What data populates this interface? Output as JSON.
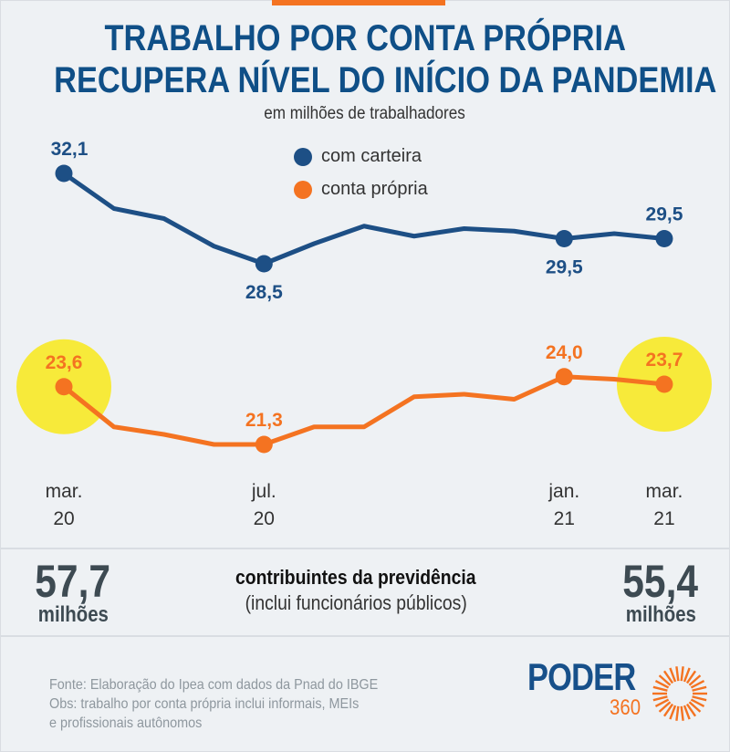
{
  "header": {
    "title_line1": "TRABALHO POR CONTA PRÓPRIA",
    "title_line2": "RECUPERA NÍVEL DO INÍCIO DA PANDEMIA",
    "subtitle": "em milhões de trabalhadores"
  },
  "colors": {
    "com_carteira": "#1d4f85",
    "conta_propria": "#f47321",
    "highlight": "#f7ea3a",
    "accent_bar": "#f47321"
  },
  "chart_data": {
    "type": "line",
    "title": "TRABALHO POR CONTA PRÓPRIA RECUPERA NÍVEL DO INÍCIO DA PANDEMIA",
    "subtitle": "em milhões de trabalhadores",
    "x_ticks": [
      {
        "index": 0,
        "line1": "mar.",
        "line2": "20"
      },
      {
        "index": 4,
        "line1": "jul.",
        "line2": "20"
      },
      {
        "index": 10,
        "line1": "jan.",
        "line2": "21"
      },
      {
        "index": 12,
        "line1": "mar.",
        "line2": "21"
      }
    ],
    "legend_placement": "top-center",
    "grid": false,
    "series": [
      {
        "name": "com carteira",
        "values": [
          32.1,
          30.7,
          30.3,
          29.2,
          28.5,
          29.3,
          30.0,
          29.6,
          29.9,
          29.8,
          29.5,
          29.7,
          29.5
        ],
        "labels": [
          {
            "index": 0,
            "text": "32,1"
          },
          {
            "index": 4,
            "text": "28,5"
          },
          {
            "index": 10,
            "text": "29,5"
          },
          {
            "index": 12,
            "text": "29,5"
          }
        ]
      },
      {
        "name": "conta própria",
        "values": [
          23.6,
          22.0,
          21.7,
          21.3,
          21.3,
          22.0,
          22.0,
          23.2,
          23.3,
          23.1,
          24.0,
          23.9,
          23.7
        ],
        "labels": [
          {
            "index": 0,
            "text": "23,6"
          },
          {
            "index": 4,
            "text": "21,3"
          },
          {
            "index": 10,
            "text": "24,0"
          },
          {
            "index": 12,
            "text": "23,7"
          }
        ],
        "highlighted": [
          0,
          12
        ]
      }
    ]
  },
  "summary": {
    "left_value": "57,7",
    "left_unit": "milhões",
    "right_value": "55,4",
    "right_unit": "milhões",
    "label_bold": "contribuintes da previdência",
    "label_note": "(inclui funcionários públicos)"
  },
  "footer": {
    "source": "Fonte: Elaboração do Ipea com dados da Pnad do IBGE",
    "note_line1": "Obs: trabalho por conta própria inclui informais, MEIs",
    "note_line2": "e profissionais autônomos",
    "logo_word": "PODER",
    "logo_number": "360"
  }
}
